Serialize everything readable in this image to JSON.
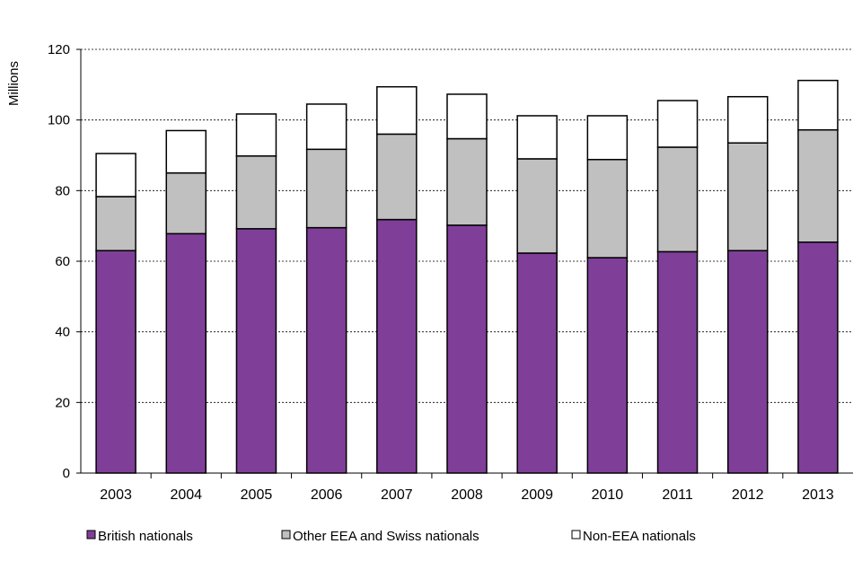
{
  "chart_data": {
    "type": "bar",
    "stacked": true,
    "title": "",
    "xlabel": "",
    "ylabel": "Millions",
    "ylim": [
      0,
      120
    ],
    "yticks": [
      0,
      20,
      40,
      60,
      80,
      100,
      120
    ],
    "grid": true,
    "legend_position": "bottom",
    "categories": [
      "2003",
      "2004",
      "2005",
      "2006",
      "2007",
      "2008",
      "2009",
      "2010",
      "2011",
      "2012",
      "2013"
    ],
    "series": [
      {
        "name": "British nationals",
        "color": "#7f3f98",
        "values": [
          63.0,
          67.8,
          69.2,
          69.5,
          71.8,
          70.2,
          62.3,
          61.0,
          62.7,
          63.0,
          65.4
        ]
      },
      {
        "name": "Other EEA and Swiss nationals",
        "color": "#c0c0c0",
        "values": [
          15.3,
          17.2,
          20.6,
          22.2,
          24.2,
          24.5,
          26.7,
          27.8,
          29.6,
          30.5,
          31.8
        ]
      },
      {
        "name": "Non-EEA nationals",
        "color": "#ffffff",
        "values": [
          12.2,
          12.0,
          11.9,
          12.8,
          13.4,
          12.6,
          12.2,
          12.4,
          13.2,
          13.1,
          14.0
        ]
      }
    ]
  }
}
